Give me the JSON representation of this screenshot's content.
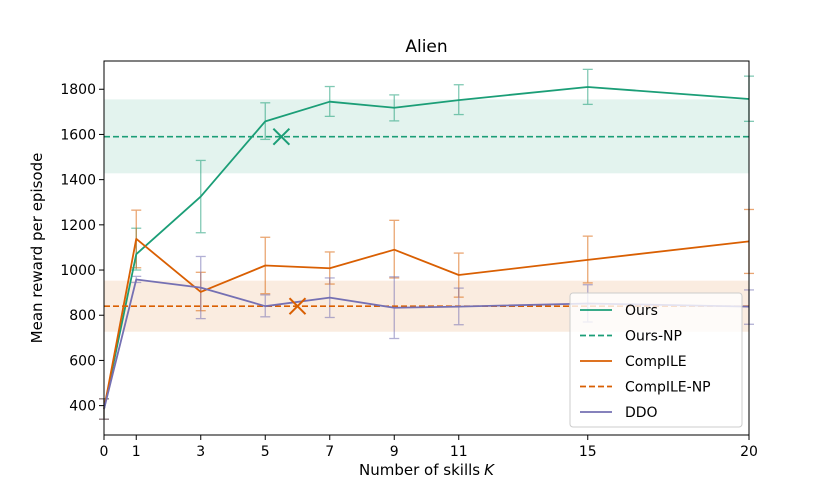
{
  "chart_data": {
    "type": "line",
    "title": "Alien",
    "xlabel": "Number of skills",
    "xlabel_var": "K",
    "ylabel": "Mean reward per episode",
    "x": [
      0,
      1,
      3,
      5,
      7,
      9,
      11,
      15,
      20
    ],
    "xticks": [
      "0",
      "1",
      "3",
      "5",
      "7",
      "9",
      "11",
      "15",
      "20"
    ],
    "yticks": [
      "400",
      "600",
      "800",
      "1000",
      "1200",
      "1400",
      "1600",
      "1800"
    ],
    "xlim": [
      0,
      20
    ],
    "ylim": [
      270,
      1925
    ],
    "legend_position": "lower-right",
    "series": [
      {
        "name": "Ours",
        "style": "solid",
        "color": "#1b9e77",
        "values": [
          385,
          1070,
          1325,
          1658,
          1745,
          1718,
          1752,
          1810,
          1757
        ],
        "err_low": [
          340,
          1000,
          1165,
          1578,
          1680,
          1660,
          1688,
          1733,
          1658
        ],
        "err_high": [
          430,
          1185,
          1485,
          1740,
          1812,
          1775,
          1820,
          1888,
          1858
        ]
      },
      {
        "name": "Ours-NP",
        "style": "dashed",
        "color": "#1b9e77",
        "y": 1590,
        "band": [
          1428,
          1755
        ],
        "marker_x": 5.5,
        "marker_y": 1590
      },
      {
        "name": "CompILE",
        "style": "solid",
        "color": "#d95f02",
        "values": [
          385,
          1138,
          903,
          1020,
          1008,
          1090,
          978,
          1045,
          1127
        ],
        "err_low": [
          340,
          1010,
          820,
          895,
          938,
          965,
          880,
          943,
          985
        ],
        "err_high": [
          430,
          1265,
          990,
          1145,
          1080,
          1220,
          1075,
          1150,
          1268
        ]
      },
      {
        "name": "CompILE-NP",
        "style": "dashed",
        "color": "#d95f02",
        "y": 840,
        "band": [
          727,
          953
        ],
        "marker_x": 6,
        "marker_y": 840
      },
      {
        "name": "DDO",
        "style": "solid",
        "color": "#7570b3",
        "values": [
          385,
          958,
          922,
          840,
          878,
          833,
          838,
          852,
          838
        ],
        "err_low": [
          340,
          945,
          785,
          793,
          790,
          697,
          758,
          770,
          760
        ],
        "err_high": [
          430,
          972,
          1060,
          890,
          965,
          970,
          920,
          935,
          912
        ]
      }
    ]
  }
}
